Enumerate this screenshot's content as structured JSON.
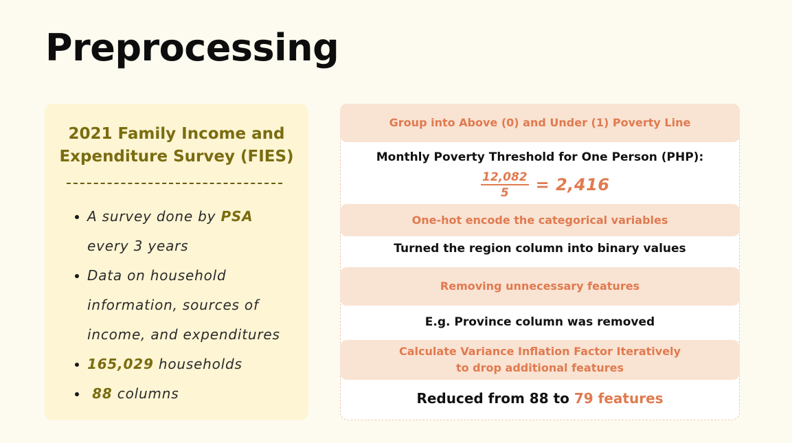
{
  "title": "Preprocessing",
  "left": {
    "title_line1": "2021 Family Income and",
    "title_line2": "Expenditure Survey (FIES)",
    "bullets": {
      "b1_pre": "A survey done by ",
      "b1_hl": "PSA",
      "b1_post": " every 3 years",
      "b2": "Data on household information, sources of income, and expenditures",
      "b3_hl": "165,029",
      "b3_post": " households",
      "b4_hl": "88",
      "b4_post": " columns"
    }
  },
  "right": {
    "band1": "Group into Above (0) and Under (1) Poverty Line",
    "text1": "Monthly Poverty Threshold for One Person (PHP):",
    "frac_num": "12,082",
    "frac_den": "5",
    "frac_result": "= 2,416",
    "band2": "One-hot encode the categorical variables",
    "text2": "Turned the region column into binary values",
    "band3": "Removing unnecessary features",
    "text3": "E.g. Province column was removed",
    "band4_line1": "Calculate Variance Inflation Factor Iteratively",
    "band4_line2": "to drop additional features",
    "text4_pre": "Reduced from 88 to ",
    "text4_hl": "79 features"
  },
  "colors": {
    "background": "#fdfbf0",
    "left_card": "#fdf5d4",
    "olive_accent": "#7a6c10",
    "band_bg": "#f9e3d3",
    "orange_accent": "#e07a4f"
  }
}
